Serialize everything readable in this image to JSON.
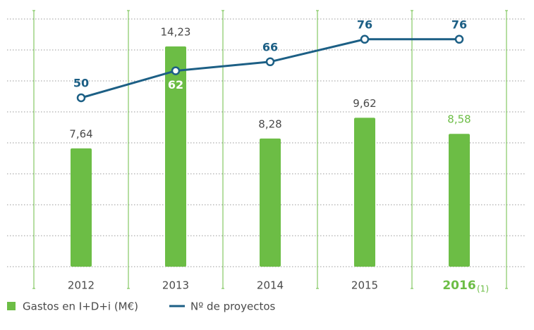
{
  "chart_data": {
    "type": "bar+line",
    "categories": [
      "2012",
      "2013",
      "2014",
      "2015",
      "2016"
    ],
    "footnotes": [
      {
        "index": 4,
        "label": "(1)"
      }
    ],
    "series": [
      {
        "name": "Gastos en I+D+i (M€)",
        "type": "bar",
        "color": "#6cbd45",
        "axis": "y",
        "values": [
          7.64,
          14.23,
          8.28,
          9.62,
          8.58
        ],
        "value_labels": [
          "7,64",
          "14,23",
          "8,28",
          "9,62",
          "8,58"
        ]
      },
      {
        "name": "Nº de proyectos",
        "type": "line",
        "color": "#1c5f85",
        "axis": "y2",
        "values": [
          50,
          62,
          66,
          76,
          76
        ]
      }
    ],
    "ylim": [
      0,
      16
    ],
    "yticks": [
      0,
      2,
      4,
      6,
      8,
      10,
      12,
      14,
      16
    ],
    "y2lim": [
      -25,
      85
    ],
    "grid": true,
    "legend": "bottom-left"
  }
}
